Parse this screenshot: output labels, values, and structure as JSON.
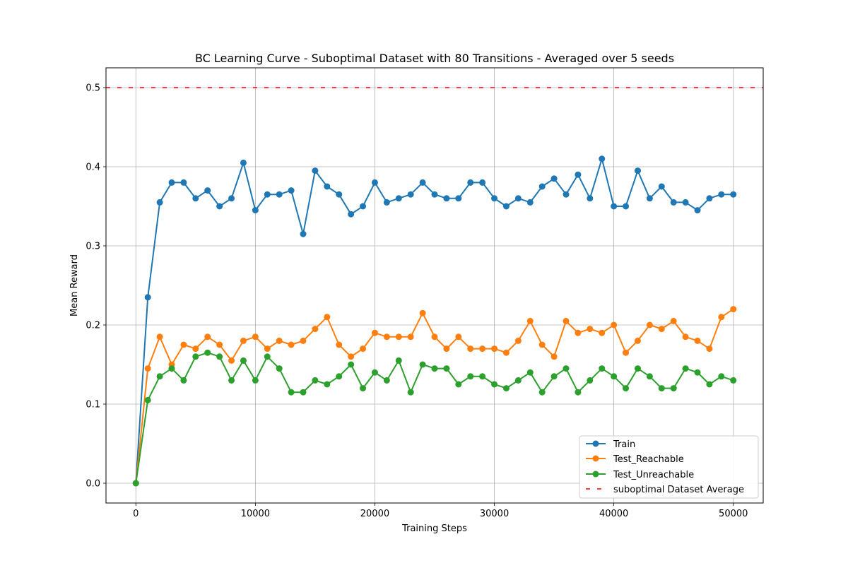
{
  "chart_data": {
    "type": "line",
    "title": "BC Learning Curve - Suboptimal Dataset with 80 Transitions - Averaged over 5 seeds",
    "xlabel": "Training Steps",
    "ylabel": "Mean Reward",
    "xlim": [
      -2500,
      52500
    ],
    "ylim": [
      -0.025,
      0.525
    ],
    "xticks": [
      0,
      10000,
      20000,
      30000,
      40000,
      50000
    ],
    "xtick_labels": [
      "0",
      "10000",
      "20000",
      "30000",
      "40000",
      "50000"
    ],
    "yticks": [
      0.0,
      0.1,
      0.2,
      0.3,
      0.4,
      0.5
    ],
    "ytick_labels": [
      "0.0",
      "0.1",
      "0.2",
      "0.3",
      "0.4",
      "0.5"
    ],
    "grid": true,
    "legend_position": "lower-right",
    "x": [
      0,
      1000,
      2000,
      3000,
      4000,
      5000,
      6000,
      7000,
      8000,
      9000,
      10000,
      11000,
      12000,
      13000,
      14000,
      15000,
      16000,
      17000,
      18000,
      19000,
      20000,
      21000,
      22000,
      23000,
      24000,
      25000,
      26000,
      27000,
      28000,
      29000,
      30000,
      31000,
      32000,
      33000,
      34000,
      35000,
      36000,
      37000,
      38000,
      39000,
      40000,
      41000,
      42000,
      43000,
      44000,
      45000,
      46000,
      47000,
      48000,
      49000,
      50000
    ],
    "series": [
      {
        "name": "Train",
        "color": "#1f77b4",
        "values": [
          0.0,
          0.235,
          0.355,
          0.38,
          0.38,
          0.36,
          0.37,
          0.35,
          0.36,
          0.405,
          0.345,
          0.365,
          0.365,
          0.37,
          0.315,
          0.395,
          0.375,
          0.365,
          0.34,
          0.35,
          0.38,
          0.355,
          0.36,
          0.365,
          0.38,
          0.365,
          0.36,
          0.36,
          0.38,
          0.38,
          0.36,
          0.35,
          0.36,
          0.355,
          0.375,
          0.385,
          0.365,
          0.39,
          0.36,
          0.41,
          0.35,
          0.35,
          0.395,
          0.36,
          0.375,
          0.355,
          0.355,
          0.345,
          0.36,
          0.365,
          0.365
        ]
      },
      {
        "name": "Test_Reachable",
        "color": "#ff7f0e",
        "values": [
          0.0,
          0.145,
          0.185,
          0.15,
          0.175,
          0.17,
          0.185,
          0.175,
          0.155,
          0.18,
          0.185,
          0.17,
          0.18,
          0.175,
          0.18,
          0.195,
          0.21,
          0.175,
          0.16,
          0.17,
          0.19,
          0.185,
          0.185,
          0.185,
          0.215,
          0.185,
          0.17,
          0.185,
          0.17,
          0.17,
          0.17,
          0.165,
          0.18,
          0.205,
          0.175,
          0.16,
          0.205,
          0.19,
          0.195,
          0.19,
          0.2,
          0.165,
          0.18,
          0.2,
          0.195,
          0.205,
          0.185,
          0.18,
          0.17,
          0.21,
          0.22
        ]
      },
      {
        "name": "Test_Unreachable",
        "color": "#2ca02c",
        "values": [
          0.0,
          0.105,
          0.135,
          0.145,
          0.13,
          0.16,
          0.165,
          0.16,
          0.13,
          0.155,
          0.13,
          0.16,
          0.145,
          0.115,
          0.115,
          0.13,
          0.125,
          0.135,
          0.15,
          0.12,
          0.14,
          0.13,
          0.155,
          0.115,
          0.15,
          0.145,
          0.145,
          0.125,
          0.135,
          0.135,
          0.125,
          0.12,
          0.13,
          0.14,
          0.115,
          0.135,
          0.145,
          0.115,
          0.13,
          0.145,
          0.135,
          0.12,
          0.145,
          0.135,
          0.12,
          0.12,
          0.145,
          0.14,
          0.125,
          0.135,
          0.13
        ]
      }
    ],
    "reference_line": {
      "name": "suboptimal Dataset Average",
      "value": 0.5,
      "color": "#ff0000",
      "style": "dashed"
    }
  }
}
